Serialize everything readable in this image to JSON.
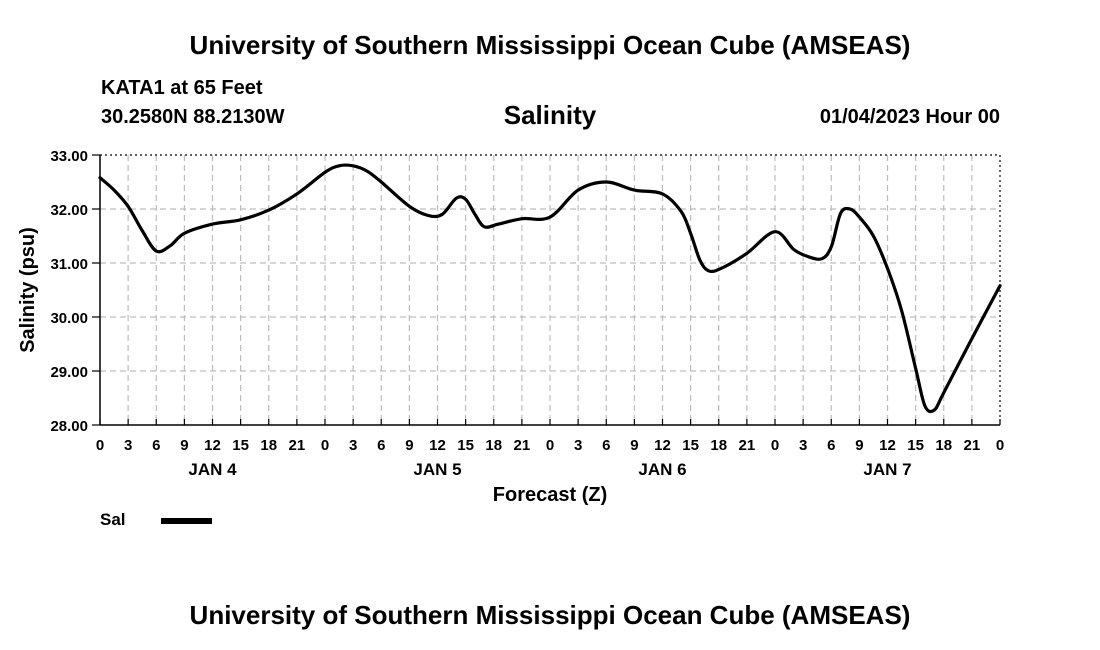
{
  "header": {
    "title_top": "University of Southern Mississippi Ocean Cube (AMSEAS)",
    "station": "KATA1 at 65 Feet",
    "coords": "30.2580N  88.2130W",
    "parameter": "Salinity",
    "run_time": "01/04/2023 Hour 00",
    "title_bottom": "University of Southern Mississippi Ocean Cube (AMSEAS)"
  },
  "legend": {
    "label": "Sal",
    "color": "#000000"
  },
  "chart_data": {
    "type": "line",
    "title": "Salinity",
    "xlabel": "Forecast (Z)",
    "ylabel": "Salinity (psu)",
    "xlim": [
      0,
      96
    ],
    "ylim": [
      28,
      33
    ],
    "grid": true,
    "x_tick_values": [
      0,
      3,
      6,
      9,
      12,
      15,
      18,
      21,
      24,
      27,
      30,
      33,
      36,
      39,
      42,
      45,
      48,
      51,
      54,
      57,
      60,
      63,
      66,
      69,
      72,
      75,
      78,
      81,
      84,
      87,
      90,
      93,
      96
    ],
    "x_tick_labels": [
      "0",
      "3",
      "6",
      "9",
      "12",
      "15",
      "18",
      "21",
      "0",
      "3",
      "6",
      "9",
      "12",
      "15",
      "18",
      "21",
      "0",
      "3",
      "6",
      "9",
      "12",
      "15",
      "18",
      "21",
      "0",
      "3",
      "6",
      "9",
      "12",
      "15",
      "18",
      "21",
      "0"
    ],
    "y_ticks": [
      28,
      29,
      30,
      31,
      32,
      33
    ],
    "y_tick_labels": [
      "28.00",
      "29.00",
      "30.00",
      "31.00",
      "32.00",
      "33.00"
    ],
    "day_labels": [
      {
        "label": "JAN 4",
        "hour": 12
      },
      {
        "label": "JAN 5",
        "hour": 36
      },
      {
        "label": "JAN 6",
        "hour": 60
      },
      {
        "label": "JAN 7",
        "hour": 84
      }
    ],
    "series": [
      {
        "name": "Sal",
        "color": "#000000",
        "x": [
          0,
          1.5,
          3,
          4.5,
          6,
          7.5,
          9,
          12,
          15,
          18,
          21,
          24,
          25.5,
          27,
          28.5,
          30,
          33,
          35,
          36.5,
          38,
          39,
          40,
          41,
          42.5,
          45,
          48,
          51,
          54,
          57,
          60,
          62,
          63,
          64,
          65,
          66.5,
          69,
          72,
          74,
          75.5,
          77,
          78,
          79,
          80,
          81,
          82.5,
          84,
          85.5,
          87,
          88,
          89,
          90,
          93,
          96
        ],
        "values": [
          32.58,
          32.35,
          32.05,
          31.6,
          31.22,
          31.32,
          31.55,
          31.72,
          31.8,
          31.98,
          32.28,
          32.68,
          32.8,
          32.8,
          32.7,
          32.5,
          32.05,
          31.88,
          31.9,
          32.2,
          32.18,
          31.9,
          31.67,
          31.72,
          31.82,
          31.85,
          32.35,
          32.5,
          32.35,
          32.28,
          31.95,
          31.55,
          31.05,
          30.85,
          30.92,
          31.18,
          31.58,
          31.25,
          31.12,
          31.08,
          31.3,
          31.92,
          32.0,
          31.85,
          31.5,
          30.9,
          30.12,
          29.05,
          28.35,
          28.28,
          28.6,
          29.6,
          30.58
        ]
      }
    ]
  }
}
